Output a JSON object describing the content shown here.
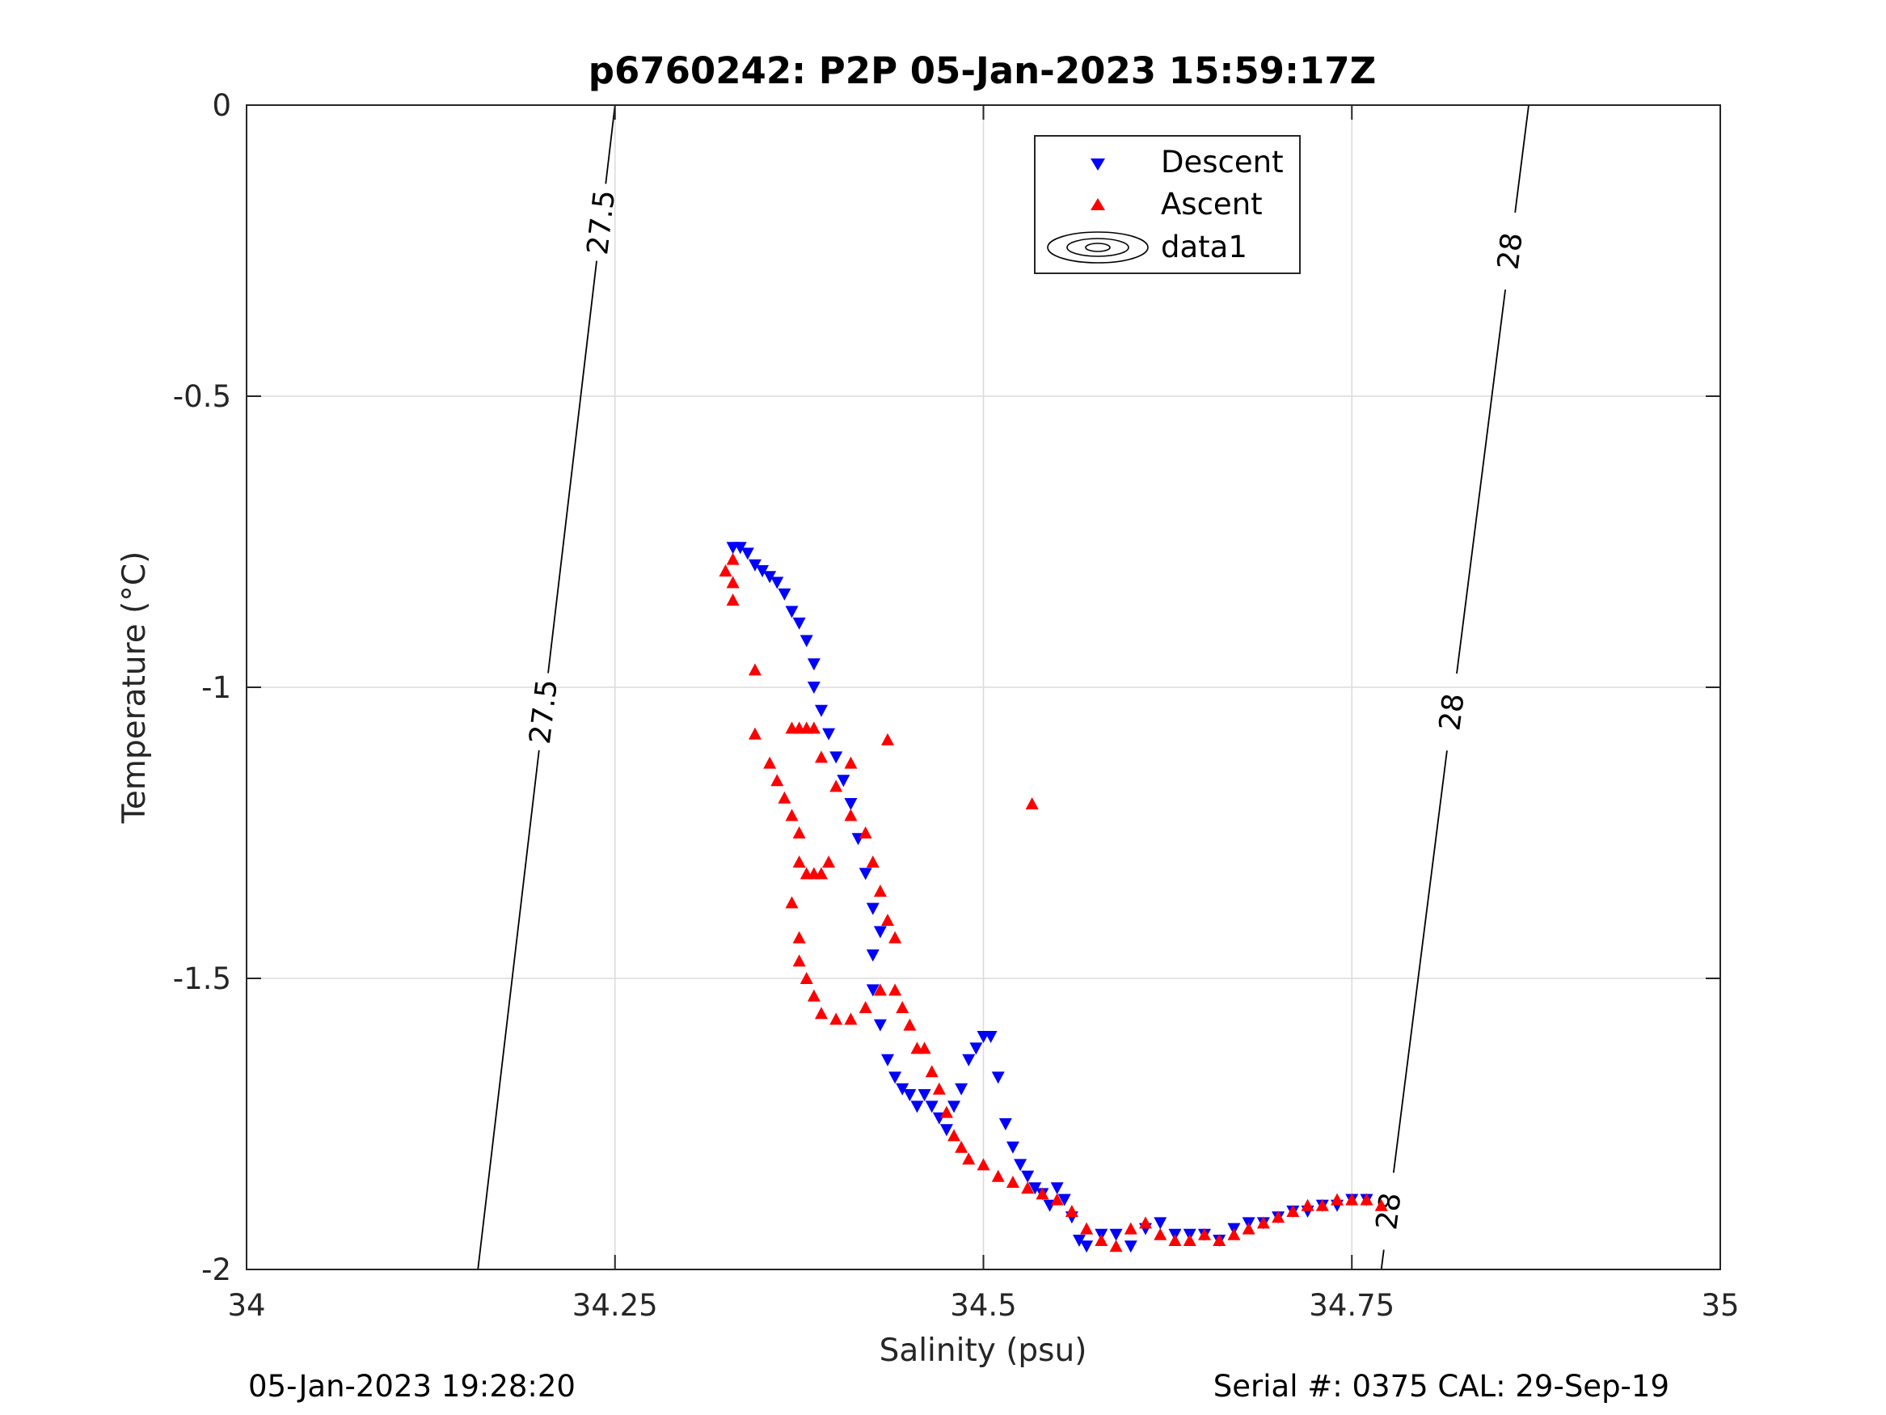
{
  "chart_data": {
    "type": "scatter",
    "title": "p6760242: P2P 05-Jan-2023 15:59:17Z",
    "xlabel": "Salinity (psu)",
    "ylabel": "Temperature (°C)",
    "xlim": [
      34,
      35
    ],
    "ylim": [
      -2,
      0
    ],
    "x_ticks": [
      34,
      34.25,
      34.5,
      34.75,
      35
    ],
    "x_tick_labels": [
      "34",
      "34.25",
      "34.5",
      "34.75",
      "35"
    ],
    "y_ticks": [
      0,
      -0.5,
      -1,
      -1.5,
      -2
    ],
    "y_tick_labels": [
      "0",
      "-0.5",
      "-1",
      "-1.5",
      "-2"
    ],
    "grid": true,
    "legend_position": "top-right",
    "legend": [
      "Descent",
      "Ascent",
      "data1"
    ],
    "series": [
      {
        "name": "Descent",
        "marker": "triangle-down",
        "color": "#0000ff",
        "points": [
          [
            34.33,
            -0.76
          ],
          [
            34.335,
            -0.76
          ],
          [
            34.34,
            -0.77
          ],
          [
            34.345,
            -0.79
          ],
          [
            34.35,
            -0.8
          ],
          [
            34.355,
            -0.81
          ],
          [
            34.36,
            -0.82
          ],
          [
            34.365,
            -0.84
          ],
          [
            34.37,
            -0.87
          ],
          [
            34.375,
            -0.89
          ],
          [
            34.38,
            -0.92
          ],
          [
            34.385,
            -0.96
          ],
          [
            34.385,
            -1.0
          ],
          [
            34.39,
            -1.04
          ],
          [
            34.395,
            -1.08
          ],
          [
            34.4,
            -1.12
          ],
          [
            34.405,
            -1.16
          ],
          [
            34.41,
            -1.2
          ],
          [
            34.415,
            -1.26
          ],
          [
            34.42,
            -1.32
          ],
          [
            34.425,
            -1.38
          ],
          [
            34.43,
            -1.42
          ],
          [
            34.425,
            -1.46
          ],
          [
            34.425,
            -1.52
          ],
          [
            34.43,
            -1.58
          ],
          [
            34.435,
            -1.64
          ],
          [
            34.44,
            -1.67
          ],
          [
            34.445,
            -1.69
          ],
          [
            34.45,
            -1.7
          ],
          [
            34.455,
            -1.72
          ],
          [
            34.46,
            -1.7
          ],
          [
            34.465,
            -1.72
          ],
          [
            34.47,
            -1.74
          ],
          [
            34.475,
            -1.76
          ],
          [
            34.48,
            -1.72
          ],
          [
            34.485,
            -1.69
          ],
          [
            34.49,
            -1.64
          ],
          [
            34.495,
            -1.62
          ],
          [
            34.5,
            -1.6
          ],
          [
            34.505,
            -1.6
          ],
          [
            34.51,
            -1.67
          ],
          [
            34.515,
            -1.75
          ],
          [
            34.52,
            -1.79
          ],
          [
            34.525,
            -1.82
          ],
          [
            34.53,
            -1.84
          ],
          [
            34.535,
            -1.86
          ],
          [
            34.54,
            -1.87
          ],
          [
            34.545,
            -1.89
          ],
          [
            34.55,
            -1.86
          ],
          [
            34.555,
            -1.88
          ],
          [
            34.56,
            -1.91
          ],
          [
            34.565,
            -1.95
          ],
          [
            34.57,
            -1.96
          ],
          [
            34.58,
            -1.94
          ],
          [
            34.59,
            -1.94
          ],
          [
            34.6,
            -1.96
          ],
          [
            34.61,
            -1.93
          ],
          [
            34.62,
            -1.92
          ],
          [
            34.63,
            -1.94
          ],
          [
            34.64,
            -1.94
          ],
          [
            34.65,
            -1.94
          ],
          [
            34.66,
            -1.95
          ],
          [
            34.67,
            -1.93
          ],
          [
            34.68,
            -1.92
          ],
          [
            34.69,
            -1.92
          ],
          [
            34.7,
            -1.91
          ],
          [
            34.71,
            -1.9
          ],
          [
            34.72,
            -1.9
          ],
          [
            34.73,
            -1.89
          ],
          [
            34.74,
            -1.89
          ],
          [
            34.75,
            -1.88
          ],
          [
            34.76,
            -1.88
          ]
        ]
      },
      {
        "name": "Ascent",
        "marker": "triangle-up",
        "color": "#ff0000",
        "points": [
          [
            34.33,
            -0.78
          ],
          [
            34.325,
            -0.8
          ],
          [
            34.33,
            -0.82
          ],
          [
            34.33,
            -0.85
          ],
          [
            34.345,
            -0.97
          ],
          [
            34.345,
            -1.08
          ],
          [
            34.355,
            -1.13
          ],
          [
            34.36,
            -1.16
          ],
          [
            34.365,
            -1.19
          ],
          [
            34.37,
            -1.22
          ],
          [
            34.375,
            -1.25
          ],
          [
            34.375,
            -1.3
          ],
          [
            34.38,
            -1.32
          ],
          [
            34.385,
            -1.32
          ],
          [
            34.39,
            -1.32
          ],
          [
            34.395,
            -1.3
          ],
          [
            34.37,
            -1.07
          ],
          [
            34.375,
            -1.07
          ],
          [
            34.38,
            -1.07
          ],
          [
            34.385,
            -1.07
          ],
          [
            34.39,
            -1.12
          ],
          [
            34.4,
            -1.17
          ],
          [
            34.41,
            -1.13
          ],
          [
            34.41,
            -1.22
          ],
          [
            34.42,
            -1.25
          ],
          [
            34.425,
            -1.3
          ],
          [
            34.43,
            -1.35
          ],
          [
            34.435,
            -1.4
          ],
          [
            34.44,
            -1.43
          ],
          [
            34.435,
            -1.09
          ],
          [
            34.37,
            -1.37
          ],
          [
            34.375,
            -1.43
          ],
          [
            34.375,
            -1.47
          ],
          [
            34.38,
            -1.5
          ],
          [
            34.385,
            -1.53
          ],
          [
            34.39,
            -1.56
          ],
          [
            34.4,
            -1.57
          ],
          [
            34.41,
            -1.57
          ],
          [
            34.42,
            -1.55
          ],
          [
            34.43,
            -1.52
          ],
          [
            34.44,
            -1.52
          ],
          [
            34.445,
            -1.55
          ],
          [
            34.45,
            -1.58
          ],
          [
            34.455,
            -1.62
          ],
          [
            34.46,
            -1.62
          ],
          [
            34.465,
            -1.66
          ],
          [
            34.47,
            -1.69
          ],
          [
            34.475,
            -1.73
          ],
          [
            34.48,
            -1.77
          ],
          [
            34.485,
            -1.79
          ],
          [
            34.49,
            -1.81
          ],
          [
            34.5,
            -1.82
          ],
          [
            34.51,
            -1.84
          ],
          [
            34.52,
            -1.85
          ],
          [
            34.53,
            -1.86
          ],
          [
            34.54,
            -1.87
          ],
          [
            34.55,
            -1.88
          ],
          [
            34.56,
            -1.9
          ],
          [
            34.57,
            -1.93
          ],
          [
            34.58,
            -1.95
          ],
          [
            34.59,
            -1.96
          ],
          [
            34.6,
            -1.93
          ],
          [
            34.61,
            -1.92
          ],
          [
            34.62,
            -1.94
          ],
          [
            34.63,
            -1.95
          ],
          [
            34.64,
            -1.95
          ],
          [
            34.65,
            -1.94
          ],
          [
            34.66,
            -1.95
          ],
          [
            34.67,
            -1.94
          ],
          [
            34.68,
            -1.93
          ],
          [
            34.69,
            -1.92
          ],
          [
            34.7,
            -1.91
          ],
          [
            34.71,
            -1.9
          ],
          [
            34.72,
            -1.89
          ],
          [
            34.73,
            -1.89
          ],
          [
            34.74,
            -1.88
          ],
          [
            34.75,
            -1.88
          ],
          [
            34.76,
            -1.88
          ],
          [
            34.77,
            -1.89
          ],
          [
            34.533,
            -1.2
          ]
        ]
      }
    ],
    "contours": [
      {
        "label": "27.5",
        "line": [
          [
            34.157,
            -2
          ],
          [
            34.25,
            0
          ]
        ],
        "label_at": [
          [
            34.236,
            -0.2
          ],
          [
            34.195,
            -1.04
          ]
        ]
      },
      {
        "label": "28",
        "line": [
          [
            34.77,
            -2
          ],
          [
            34.87,
            0
          ]
        ],
        "label_at": [
          [
            34.855,
            -0.25
          ],
          [
            34.81,
            -1.04
          ],
          [
            34.775,
            -1.9
          ]
        ]
      }
    ],
    "footer_left": "05-Jan-2023 19:28:20",
    "footer_right": "Serial #: 0375  CAL: 29-Sep-19"
  },
  "colors": {
    "descent": "#0000ff",
    "ascent": "#ff0000",
    "grid": "#d9d9d9",
    "axis": "#262626"
  }
}
